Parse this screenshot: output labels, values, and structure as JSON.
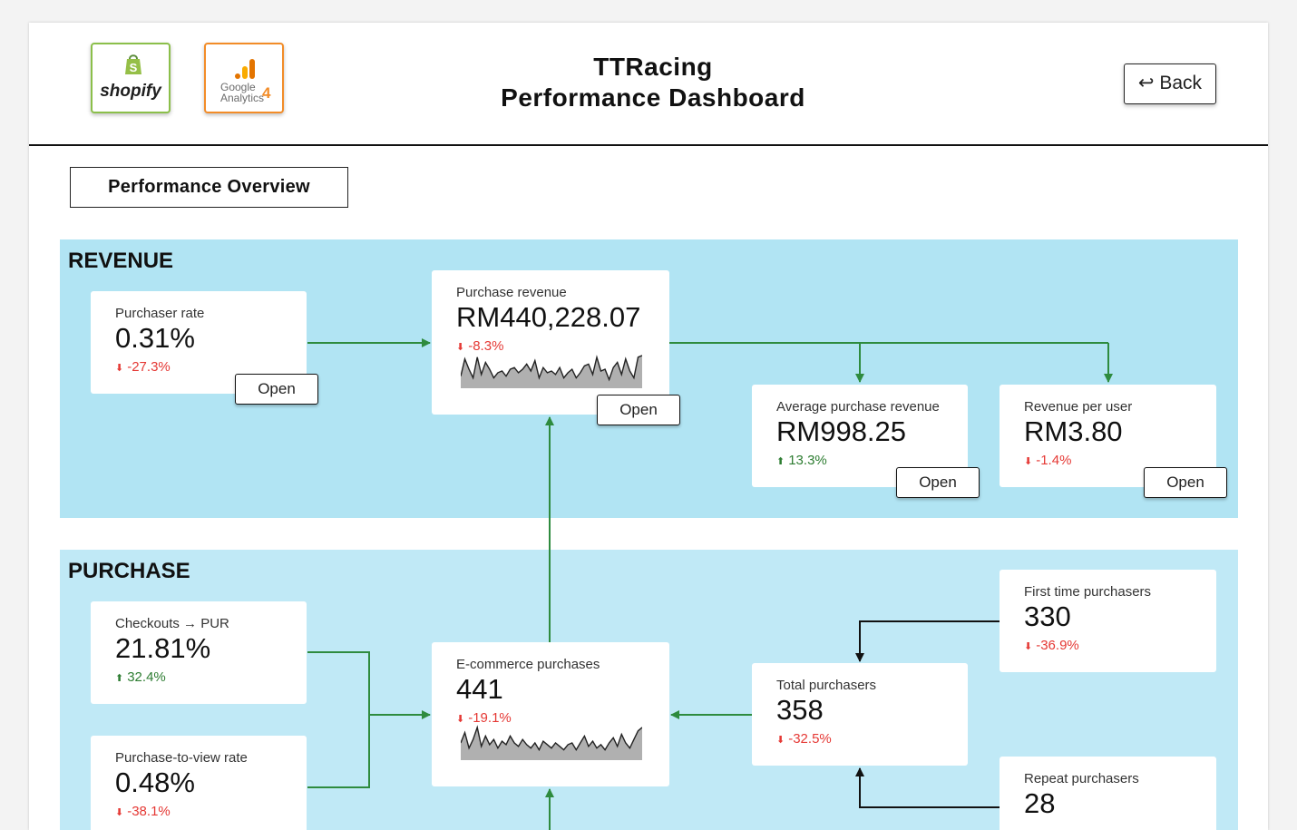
{
  "header": {
    "logos": {
      "shopify": {
        "text": "shopify",
        "icon": "shopify-bag-icon"
      },
      "ga": {
        "line1": "Google",
        "line2": "Analytics",
        "version": "4",
        "icon": "ga-bars-icon"
      }
    },
    "title_line1": "TTRacing",
    "title_line2": "Performance Dashboard",
    "back_icon": "↩",
    "back_label": "Back"
  },
  "overview_label": "Performance Overview",
  "colors": {
    "flow_green": "#2e8b3e",
    "revenue_bg": "#b1e4f3",
    "purchase_bg": "#c0e9f6",
    "negative": "#e53935",
    "positive": "#2e7d32"
  },
  "revenue": {
    "title": "REVENUE",
    "purchaser_rate": {
      "label": "Purchaser rate",
      "value": "0.31%",
      "change": "-27.3%",
      "direction": "down",
      "open": "Open"
    },
    "purchase_revenue": {
      "label": "Purchase revenue",
      "value": "RM440,228.07",
      "change": "-8.3%",
      "direction": "down",
      "open": "Open",
      "spark": [
        0.35,
        0.85,
        0.55,
        0.3,
        0.9,
        0.4,
        0.75,
        0.55,
        0.3,
        0.45,
        0.5,
        0.35,
        0.55,
        0.6,
        0.45,
        0.55,
        0.7,
        0.5,
        0.8,
        0.3,
        0.6,
        0.45,
        0.5,
        0.4,
        0.6,
        0.3,
        0.45,
        0.55,
        0.3,
        0.45,
        0.65,
        0.7,
        0.4,
        0.9,
        0.5,
        0.55,
        0.25,
        0.6,
        0.75,
        0.4,
        0.85,
        0.5,
        0.3,
        0.9,
        0.95
      ]
    },
    "avg_purchase_revenue": {
      "label": "Average purchase revenue",
      "value": "RM998.25",
      "change": "13.3%",
      "direction": "up",
      "open": "Open"
    },
    "revenue_per_user": {
      "label": "Revenue per user",
      "value": "RM3.80",
      "change": "-1.4%",
      "direction": "down",
      "open": "Open"
    }
  },
  "purchase": {
    "title": "PURCHASE",
    "checkouts_pur": {
      "label": "Checkouts → PUR",
      "value": "21.81%",
      "change": "32.4%",
      "direction": "up"
    },
    "purchase_to_view": {
      "label": "Purchase-to-view rate",
      "value": "0.48%",
      "change": "-38.1%",
      "direction": "down"
    },
    "ecommerce_purchases": {
      "label": "E-commerce purchases",
      "value": "441",
      "change": "-19.1%",
      "direction": "down",
      "spark": [
        0.5,
        0.8,
        0.35,
        0.6,
        0.95,
        0.4,
        0.7,
        0.45,
        0.6,
        0.35,
        0.55,
        0.45,
        0.7,
        0.5,
        0.4,
        0.6,
        0.45,
        0.35,
        0.5,
        0.3,
        0.55,
        0.45,
        0.35,
        0.5,
        0.4,
        0.3,
        0.45,
        0.5,
        0.3,
        0.5,
        0.7,
        0.4,
        0.55,
        0.35,
        0.45,
        0.3,
        0.5,
        0.65,
        0.4,
        0.75,
        0.5,
        0.35,
        0.6,
        0.85,
        0.95
      ]
    },
    "total_purchasers": {
      "label": "Total purchasers",
      "value": "358",
      "change": "-32.5%",
      "direction": "down"
    },
    "first_time_purchasers": {
      "label": "First time purchasers",
      "value": "330",
      "change": "-36.9%",
      "direction": "down"
    },
    "repeat_purchasers": {
      "label": "Repeat purchasers",
      "value": "28"
    }
  }
}
